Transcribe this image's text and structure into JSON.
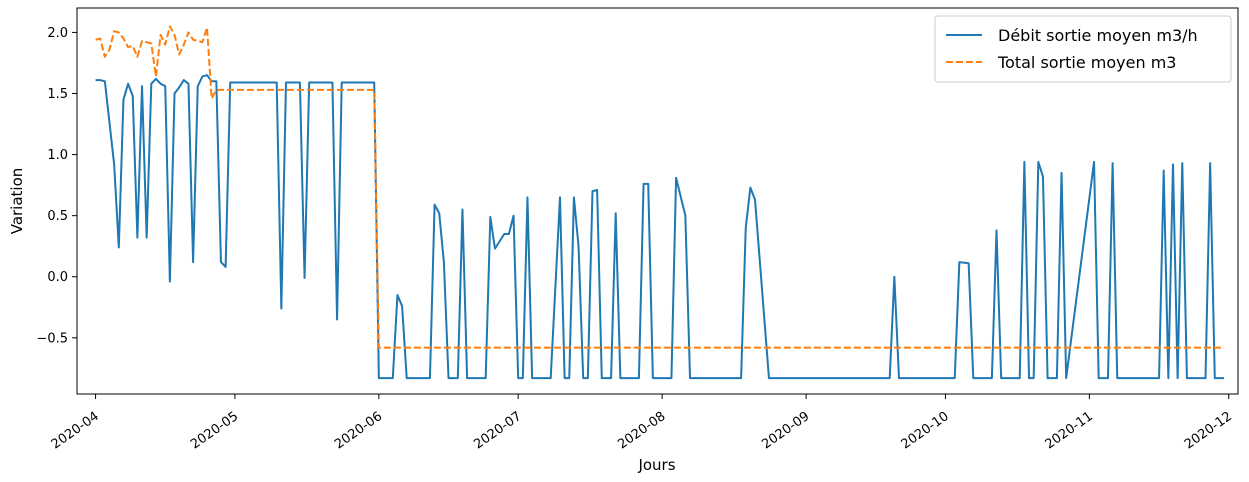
{
  "chart_data": {
    "type": "line",
    "xlabel": "Jours",
    "ylabel": "Variation",
    "x_axis_type": "date",
    "xlim": [
      "2020-03-28",
      "2020-12-03"
    ],
    "ylim": [
      -0.96,
      2.2
    ],
    "x_ticks": [
      "2020-04-01",
      "2020-05-01",
      "2020-06-01",
      "2020-07-01",
      "2020-08-01",
      "2020-09-01",
      "2020-10-01",
      "2020-11-01",
      "2020-12-01"
    ],
    "x_tick_labels": [
      "2020-04",
      "2020-05",
      "2020-06",
      "2020-07",
      "2020-08",
      "2020-09",
      "2020-10",
      "2020-11",
      "2020-12"
    ],
    "y_ticks": [
      -0.5,
      0.0,
      0.5,
      1.0,
      1.5,
      2.0
    ],
    "y_tick_labels": [
      "−0.5",
      "0.0",
      "0.5",
      "1.0",
      "1.5",
      "2.0"
    ],
    "grid": false,
    "legend_position": "top-right",
    "series": [
      {
        "name": "Débit sortie moyen m3/h",
        "color": "#1f77b4",
        "style": "solid",
        "points": [
          [
            "2020-04-01",
            1.61
          ],
          [
            "2020-04-02",
            1.61
          ],
          [
            "2020-04-03",
            1.6
          ],
          [
            "2020-04-05",
            0.92
          ],
          [
            "2020-04-06",
            0.24
          ],
          [
            "2020-04-07",
            1.45
          ],
          [
            "2020-04-08",
            1.58
          ],
          [
            "2020-04-09",
            1.48
          ],
          [
            "2020-04-10",
            0.32
          ],
          [
            "2020-04-11",
            1.56
          ],
          [
            "2020-04-12",
            0.32
          ],
          [
            "2020-04-13",
            1.58
          ],
          [
            "2020-04-14",
            1.62
          ],
          [
            "2020-04-15",
            1.58
          ],
          [
            "2020-04-16",
            1.56
          ],
          [
            "2020-04-17",
            -0.04
          ],
          [
            "2020-04-18",
            1.5
          ],
          [
            "2020-04-19",
            1.55
          ],
          [
            "2020-04-20",
            1.61
          ],
          [
            "2020-04-21",
            1.58
          ],
          [
            "2020-04-22",
            0.12
          ],
          [
            "2020-04-23",
            1.56
          ],
          [
            "2020-04-24",
            1.64
          ],
          [
            "2020-04-25",
            1.65
          ],
          [
            "2020-04-26",
            1.6
          ],
          [
            "2020-04-27",
            1.6
          ],
          [
            "2020-04-28",
            0.12
          ],
          [
            "2020-04-29",
            0.08
          ],
          [
            "2020-04-30",
            1.59
          ],
          [
            "2020-05-10",
            1.59
          ],
          [
            "2020-05-11",
            -0.26
          ],
          [
            "2020-05-12",
            1.59
          ],
          [
            "2020-05-15",
            1.59
          ],
          [
            "2020-05-16",
            -0.01
          ],
          [
            "2020-05-17",
            1.59
          ],
          [
            "2020-05-22",
            1.59
          ],
          [
            "2020-05-23",
            -0.35
          ],
          [
            "2020-05-24",
            1.59
          ],
          [
            "2020-05-31",
            1.59
          ],
          [
            "2020-06-01",
            -0.83
          ],
          [
            "2020-06-04",
            -0.83
          ],
          [
            "2020-06-05",
            -0.15
          ],
          [
            "2020-06-06",
            -0.24
          ],
          [
            "2020-06-07",
            -0.83
          ],
          [
            "2020-06-12",
            -0.83
          ],
          [
            "2020-06-13",
            0.59
          ],
          [
            "2020-06-14",
            0.52
          ],
          [
            "2020-06-15",
            0.12
          ],
          [
            "2020-06-16",
            -0.83
          ],
          [
            "2020-06-18",
            -0.83
          ],
          [
            "2020-06-19",
            0.55
          ],
          [
            "2020-06-20",
            -0.83
          ],
          [
            "2020-06-24",
            -0.83
          ],
          [
            "2020-06-25",
            0.49
          ],
          [
            "2020-06-26",
            0.23
          ],
          [
            "2020-06-28",
            0.35
          ],
          [
            "2020-06-29",
            0.35
          ],
          [
            "2020-06-30",
            0.5
          ],
          [
            "2020-07-01",
            -0.83
          ],
          [
            "2020-07-02",
            -0.83
          ],
          [
            "2020-07-03",
            0.65
          ],
          [
            "2020-07-04",
            -0.83
          ],
          [
            "2020-07-08",
            -0.83
          ],
          [
            "2020-07-10",
            0.65
          ],
          [
            "2020-07-11",
            -0.83
          ],
          [
            "2020-07-12",
            -0.83
          ],
          [
            "2020-07-13",
            0.65
          ],
          [
            "2020-07-14",
            0.25
          ],
          [
            "2020-07-15",
            -0.83
          ],
          [
            "2020-07-16",
            -0.83
          ],
          [
            "2020-07-17",
            0.7
          ],
          [
            "2020-07-18",
            0.71
          ],
          [
            "2020-07-19",
            -0.83
          ],
          [
            "2020-07-21",
            -0.83
          ],
          [
            "2020-07-22",
            0.52
          ],
          [
            "2020-07-23",
            -0.83
          ],
          [
            "2020-07-27",
            -0.83
          ],
          [
            "2020-07-28",
            0.76
          ],
          [
            "2020-07-29",
            0.76
          ],
          [
            "2020-07-30",
            -0.83
          ],
          [
            "2020-08-03",
            -0.83
          ],
          [
            "2020-08-04",
            0.81
          ],
          [
            "2020-08-06",
            0.5
          ],
          [
            "2020-08-07",
            -0.83
          ],
          [
            "2020-08-18",
            -0.83
          ],
          [
            "2020-08-19",
            0.4
          ],
          [
            "2020-08-20",
            0.73
          ],
          [
            "2020-08-21",
            0.63
          ],
          [
            "2020-08-24",
            -0.83
          ],
          [
            "2020-09-19",
            -0.83
          ],
          [
            "2020-09-20",
            0.0
          ],
          [
            "2020-09-21",
            -0.83
          ],
          [
            "2020-10-03",
            -0.83
          ],
          [
            "2020-10-04",
            0.12
          ],
          [
            "2020-10-06",
            0.11
          ],
          [
            "2020-10-07",
            -0.83
          ],
          [
            "2020-10-11",
            -0.83
          ],
          [
            "2020-10-12",
            0.38
          ],
          [
            "2020-10-13",
            -0.83
          ],
          [
            "2020-10-17",
            -0.83
          ],
          [
            "2020-10-18",
            0.94
          ],
          [
            "2020-10-19",
            -0.83
          ],
          [
            "2020-10-20",
            -0.83
          ],
          [
            "2020-10-21",
            0.94
          ],
          [
            "2020-10-22",
            0.82
          ],
          [
            "2020-10-23",
            -0.83
          ],
          [
            "2020-10-25",
            -0.83
          ],
          [
            "2020-10-26",
            0.85
          ],
          [
            "2020-10-27",
            -0.83
          ],
          [
            "2020-11-02",
            0.94
          ],
          [
            "2020-11-03",
            -0.83
          ],
          [
            "2020-11-05",
            -0.83
          ],
          [
            "2020-11-06",
            0.93
          ],
          [
            "2020-11-07",
            -0.83
          ],
          [
            "2020-11-16",
            -0.83
          ],
          [
            "2020-11-17",
            0.87
          ],
          [
            "2020-11-18",
            -0.83
          ],
          [
            "2020-11-19",
            0.92
          ],
          [
            "2020-11-20",
            -0.83
          ],
          [
            "2020-11-21",
            0.93
          ],
          [
            "2020-11-22",
            -0.83
          ],
          [
            "2020-11-26",
            -0.83
          ],
          [
            "2020-11-27",
            0.93
          ],
          [
            "2020-11-28",
            -0.83
          ],
          [
            "2020-11-30",
            -0.83
          ]
        ]
      },
      {
        "name": "Total sortie moyen m3",
        "color": "#ff7f0e",
        "style": "dashed",
        "points": [
          [
            "2020-04-01",
            1.94
          ],
          [
            "2020-04-02",
            1.95
          ],
          [
            "2020-04-03",
            1.8
          ],
          [
            "2020-04-04",
            1.86
          ],
          [
            "2020-04-05",
            2.01
          ],
          [
            "2020-04-06",
            2.0
          ],
          [
            "2020-04-07",
            1.95
          ],
          [
            "2020-04-08",
            1.88
          ],
          [
            "2020-04-09",
            1.89
          ],
          [
            "2020-04-10",
            1.8
          ],
          [
            "2020-04-11",
            1.93
          ],
          [
            "2020-04-12",
            1.92
          ],
          [
            "2020-04-13",
            1.91
          ],
          [
            "2020-04-14",
            1.64
          ],
          [
            "2020-04-15",
            1.98
          ],
          [
            "2020-04-16",
            1.9
          ],
          [
            "2020-04-17",
            2.05
          ],
          [
            "2020-04-18",
            1.98
          ],
          [
            "2020-04-19",
            1.82
          ],
          [
            "2020-04-20",
            1.9
          ],
          [
            "2020-04-21",
            2.0
          ],
          [
            "2020-04-22",
            1.94
          ],
          [
            "2020-04-23",
            1.93
          ],
          [
            "2020-04-24",
            1.92
          ],
          [
            "2020-04-25",
            2.04
          ],
          [
            "2020-04-26",
            1.46
          ],
          [
            "2020-04-27",
            1.53
          ],
          [
            "2020-05-31",
            1.53
          ],
          [
            "2020-06-01",
            -0.58
          ],
          [
            "2020-11-30",
            -0.58
          ]
        ]
      }
    ]
  }
}
